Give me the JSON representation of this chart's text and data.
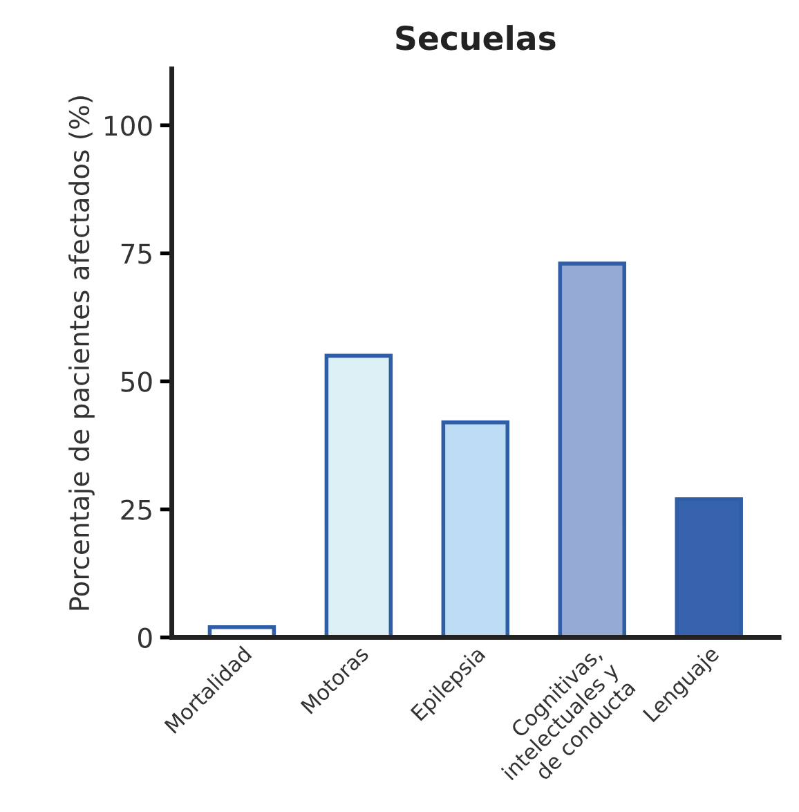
{
  "chart_data": {
    "type": "bar",
    "title": "Secuelas",
    "ylabel": "Porcentaje de pacientes afectados (%)",
    "categories": [
      "Mortalidad",
      "Motoras",
      "Epilepsia",
      "Cognitivas,\nintelectuales y\nde conducta",
      "Lenguaje"
    ],
    "values": [
      2,
      55,
      42,
      73,
      27
    ],
    "colors": [
      "#ffffff",
      "#dcf0f5",
      "#bcdcf4",
      "#96aad6",
      "#3763ae"
    ],
    "ylim": [
      0,
      111
    ],
    "yticks": [
      0,
      25,
      50,
      75,
      100
    ],
    "grid": false
  }
}
